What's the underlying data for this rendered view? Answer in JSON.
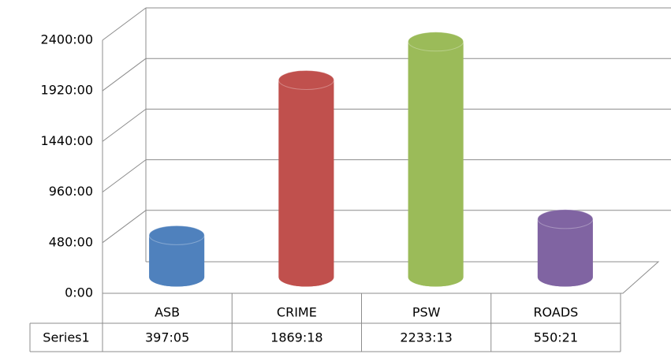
{
  "chart_data": {
    "type": "bar",
    "categories": [
      "ASB",
      "CRIME",
      "PSW",
      "ROADS"
    ],
    "series": [
      {
        "name": "Series1",
        "values": [
          397.0833,
          1869.3,
          2233.2167,
          550.35
        ],
        "value_labels": [
          "397:05",
          "1869:18",
          "2233:13",
          "550:21"
        ],
        "colors": [
          "#4f81bd",
          "#c0504d",
          "#9bbb59",
          "#8064a2"
        ]
      }
    ],
    "ylim": [
      0,
      2400
    ],
    "yticks": [
      {
        "value": 0,
        "label": "0:00"
      },
      {
        "value": 480,
        "label": "480:00"
      },
      {
        "value": 960,
        "label": "960:00"
      },
      {
        "value": 1440,
        "label": "1440:00"
      },
      {
        "value": 1920,
        "label": "1920:00"
      },
      {
        "value": 2400,
        "label": "2400:00"
      }
    ],
    "grid": true
  }
}
